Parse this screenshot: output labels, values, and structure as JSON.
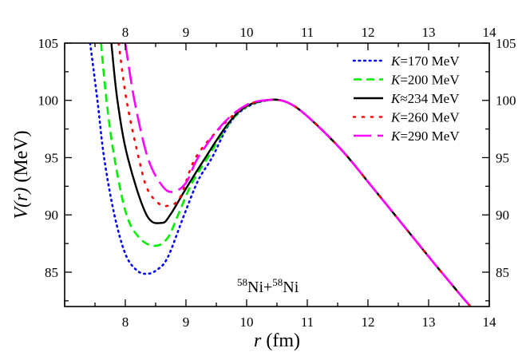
{
  "chart_data": {
    "type": "line",
    "xlabel": {
      "var": "r",
      "unit": " (fm)"
    },
    "ylabel": {
      "var": "V(r)",
      "unit": " (MeV)"
    },
    "xlim": [
      7,
      14
    ],
    "ylim": [
      82,
      105
    ],
    "xticks": [
      "8",
      "9",
      "10",
      "11",
      "12",
      "13",
      "14"
    ],
    "yticks": [
      "85",
      "90",
      "95",
      "100",
      "105"
    ],
    "grid": false,
    "legend_position": "top-right",
    "annotation": {
      "mass": "58",
      "el1": "Ni+",
      "mass2": "58",
      "el2": "Ni"
    },
    "series": [
      {
        "name": "K=170 MeV",
        "k": "K",
        "rest": "=170 MeV",
        "color": "#0000ff",
        "style": "dotted",
        "x": [
          7.42,
          7.54,
          7.65,
          7.82,
          8.0,
          8.18,
          8.35,
          8.52,
          8.7,
          8.97,
          9.2,
          9.43,
          9.71,
          10.0,
          10.4,
          10.7,
          11.03,
          11.57,
          12.06,
          12.54,
          13.02,
          13.5,
          13.69
        ],
        "y": [
          105,
          100,
          95,
          90,
          86.6,
          85.2,
          84.85,
          85.2,
          86.3,
          90,
          93,
          95,
          97.9,
          99.4,
          100.05,
          99.75,
          98.47,
          95.64,
          92.5,
          89.37,
          86.23,
          83.17,
          82
        ]
      },
      {
        "name": "K=200 MeV",
        "k": "K",
        "rest": "=200 MeV",
        "color": "#00ee00",
        "style": "dashed",
        "x": [
          7.6,
          7.69,
          7.82,
          8.02,
          8.25,
          8.5,
          8.7,
          8.87,
          9.1,
          9.36,
          9.7,
          10.0,
          10.4,
          10.7,
          11.03,
          11.57,
          12.06,
          12.54,
          13.02,
          13.5,
          13.69
        ],
        "y": [
          105,
          100,
          95,
          90,
          87.9,
          87.3,
          88.0,
          90,
          92.8,
          95,
          97.9,
          99.45,
          100.05,
          99.75,
          98.47,
          95.64,
          92.5,
          89.37,
          86.23,
          83.17,
          82
        ]
      },
      {
        "name": "K≈234 MeV",
        "k": "K",
        "rest": "≈234 MeV",
        "color": "#000000",
        "style": "solid",
        "x": [
          7.77,
          7.87,
          8.04,
          8.35,
          8.6,
          8.74,
          9.0,
          9.32,
          9.7,
          10.0,
          10.4,
          10.7,
          11.03,
          11.57,
          12.06,
          12.54,
          13.02,
          13.5,
          13.69
        ],
        "y": [
          105,
          100,
          95,
          90,
          89.3,
          90,
          92.3,
          95,
          98,
          99.5,
          100.05,
          99.75,
          98.47,
          95.64,
          92.5,
          89.37,
          86.23,
          83.17,
          82
        ]
      },
      {
        "name": "K=260 MeV",
        "k": "K",
        "rest": "=260 MeV",
        "color": "#ff0000",
        "style": "dotted-sparse",
        "x": [
          7.89,
          8.02,
          8.22,
          8.36,
          8.55,
          8.7,
          8.9,
          9.16,
          9.6,
          10.0,
          10.4,
          10.7,
          11.03,
          11.57,
          12.06,
          12.54,
          13.02,
          13.5,
          13.69
        ],
        "y": [
          105,
          100,
          95,
          92.3,
          91.0,
          90.8,
          91.5,
          95,
          97.8,
          99.55,
          100.05,
          99.75,
          98.47,
          95.64,
          92.5,
          89.37,
          86.23,
          83.17,
          82
        ]
      },
      {
        "name": "K=290 MeV",
        "k": "K",
        "rest": "=290 MeV",
        "color": "#ff00ff",
        "style": "long-dashed",
        "x": [
          8.0,
          8.15,
          8.37,
          8.6,
          8.78,
          9.0,
          9.2,
          9.6,
          10.0,
          10.4,
          10.7,
          11.03,
          11.57,
          12.06,
          12.54,
          13.02,
          13.5,
          13.69
        ],
        "y": [
          105,
          100,
          95,
          92.6,
          92.0,
          92.8,
          95,
          97.9,
          99.6,
          100.05,
          99.75,
          98.47,
          95.64,
          92.5,
          89.37,
          86.23,
          83.17,
          82
        ]
      }
    ]
  }
}
